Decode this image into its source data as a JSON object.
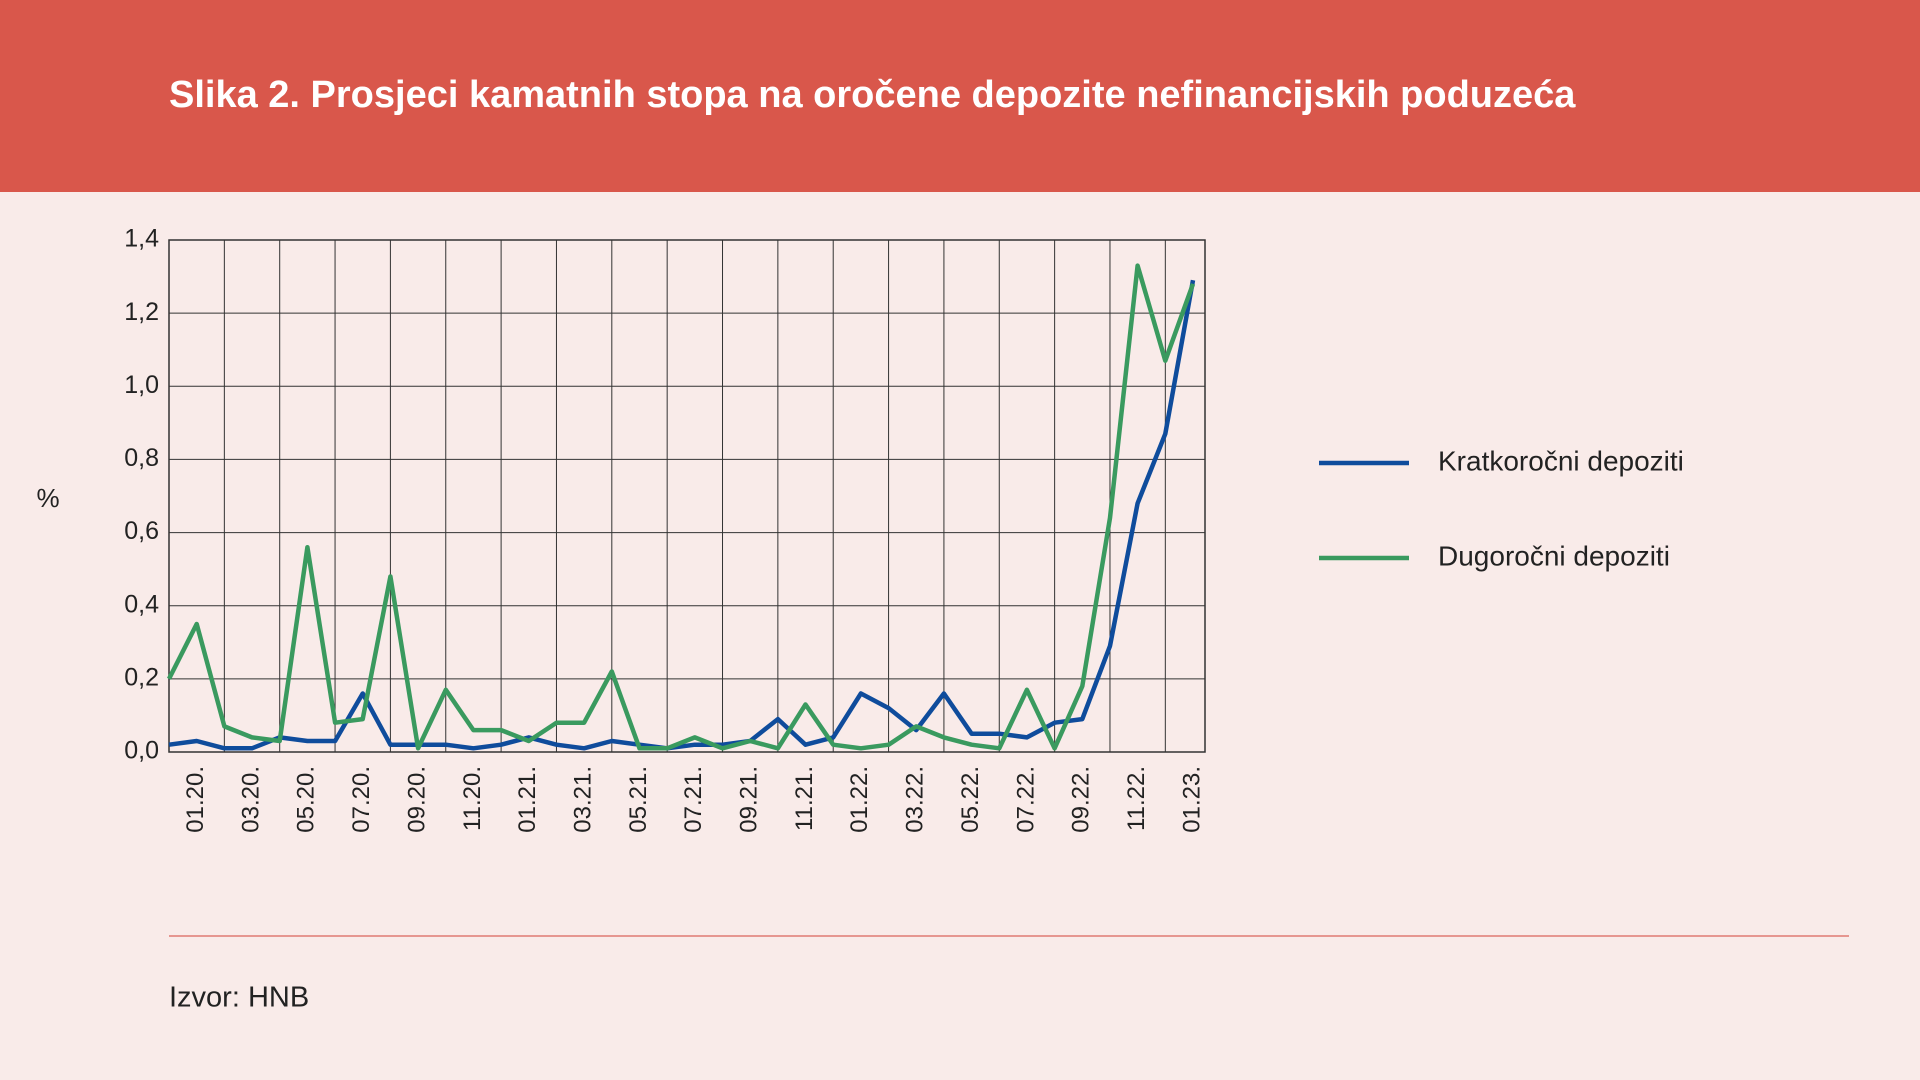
{
  "chart_data": {
    "type": "line",
    "title": "Slika 2. Prosjeci kamatnih stopa na oročene depozite nefinancijskih poduzeća",
    "y_label": "%",
    "source": "Izvor: HNB",
    "categories": [
      null,
      "01.20.",
      null,
      "03.20.",
      null,
      "05.20.",
      null,
      "07.20.",
      null,
      "09.20.",
      null,
      "11.20.",
      null,
      "01.21.",
      null,
      "03.21.",
      null,
      "05.21.",
      null,
      "07.21.",
      null,
      "09.21.",
      null,
      "11.21.",
      null,
      "01.22.",
      null,
      "03.22.",
      null,
      "05.22.",
      null,
      "07.22.",
      null,
      "09.22.",
      null,
      "11.22.",
      null,
      "01.23."
    ],
    "series": [
      {
        "name": "Kratkoročni depoziti",
        "color": "#0f4c9c",
        "values": [
          0.02,
          0.03,
          0.01,
          0.01,
          0.04,
          0.03,
          0.03,
          0.16,
          0.02,
          0.02,
          0.02,
          0.01,
          0.02,
          0.04,
          0.02,
          0.01,
          0.03,
          0.02,
          0.01,
          0.02,
          0.02,
          0.03,
          0.09,
          0.02,
          0.04,
          0.16,
          0.12,
          0.06,
          0.16,
          0.05,
          0.05,
          0.04,
          0.08,
          0.09,
          0.29,
          0.68,
          0.87,
          1.29
        ]
      },
      {
        "name": "Dugoročni depoziti",
        "color": "#3a9a5f",
        "values": [
          0.2,
          0.35,
          0.07,
          0.04,
          0.03,
          0.56,
          0.08,
          0.09,
          0.48,
          0.01,
          0.17,
          0.06,
          0.06,
          0.03,
          0.08,
          0.08,
          0.22,
          0.01,
          0.01,
          0.04,
          0.01,
          0.03,
          0.01,
          0.13,
          0.02,
          0.01,
          0.02,
          0.07,
          0.04,
          0.02,
          0.01,
          0.17,
          0.01,
          0.18,
          0.64,
          1.33,
          1.07,
          1.28
        ]
      }
    ],
    "ylim": [
      0,
      1.4
    ],
    "yticks": [
      {
        "value": 0,
        "label": "0,0"
      },
      {
        "value": 0.2,
        "label": "0,2"
      },
      {
        "value": 0.4,
        "label": "0,4"
      },
      {
        "value": 0.6,
        "label": "0,6"
      },
      {
        "value": 0.8,
        "label": "0,8"
      },
      {
        "value": 1.0,
        "label": "1,0"
      },
      {
        "value": 1.2,
        "label": "1,2"
      },
      {
        "value": 1.4,
        "label": "1,4"
      }
    ],
    "grid": true
  }
}
